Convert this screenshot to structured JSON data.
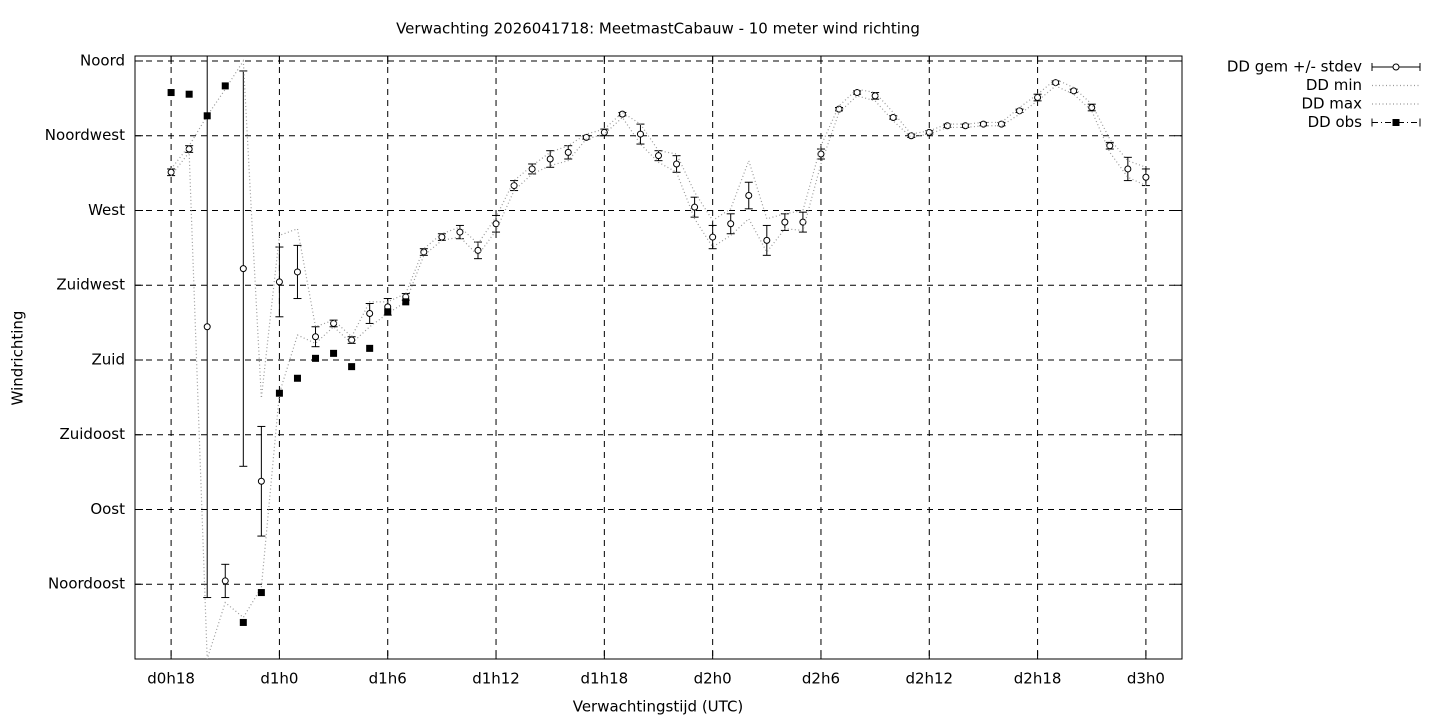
{
  "chart_data": {
    "type": "line",
    "title": "Verwachting 2026041718: MeetmastCabauw - 10 meter wind richting",
    "xlabel": "Verwachtingstijd (UTC)",
    "ylabel": "Windrichting",
    "x": [
      18,
      19,
      20,
      21,
      22,
      23,
      24,
      25,
      26,
      27,
      28,
      29,
      30,
      31,
      32,
      33,
      34,
      35,
      36,
      37,
      38,
      39,
      40,
      41,
      42,
      43,
      44,
      45,
      46,
      47,
      48,
      49,
      50,
      51,
      52,
      53,
      54,
      55,
      56,
      57,
      58,
      59,
      60,
      61,
      62,
      63,
      64,
      65,
      66,
      67,
      68,
      69,
      70,
      71,
      72
    ],
    "xlim": [
      16,
      74
    ],
    "ylim": [
      0,
      363
    ],
    "xticks": [
      {
        "value": 18,
        "label": "d0h18"
      },
      {
        "value": 24,
        "label": "d1h0"
      },
      {
        "value": 30,
        "label": "d1h6"
      },
      {
        "value": 36,
        "label": "d1h12"
      },
      {
        "value": 42,
        "label": "d1h18"
      },
      {
        "value": 48,
        "label": "d2h0"
      },
      {
        "value": 54,
        "label": "d2h6"
      },
      {
        "value": 60,
        "label": "d2h12"
      },
      {
        "value": 66,
        "label": "d2h18"
      },
      {
        "value": 72,
        "label": "d3h0"
      }
    ],
    "yticks": [
      {
        "value": 45,
        "label": "Noordoost"
      },
      {
        "value": 90,
        "label": "Oost"
      },
      {
        "value": 135,
        "label": "Zuidoost"
      },
      {
        "value": 180,
        "label": "Zuid"
      },
      {
        "value": 225,
        "label": "Zuidwest"
      },
      {
        "value": 270,
        "label": "West"
      },
      {
        "value": 315,
        "label": "Noordwest"
      },
      {
        "value": 360,
        "label": "Noord"
      }
    ],
    "grid": true,
    "legend": "right",
    "series": [
      {
        "name": "DD gem +/- stdev",
        "color": "#000000",
        "style": "errorbars",
        "values": [
          293,
          307,
          200,
          47,
          235,
          107,
          227,
          233,
          194,
          202,
          192,
          208,
          212,
          218,
          245,
          254,
          257,
          246,
          262,
          285,
          295,
          301,
          305,
          314,
          317,
          328,
          316,
          303,
          298,
          272,
          254,
          262,
          279,
          252,
          263,
          263,
          304,
          331,
          341,
          339,
          326,
          315,
          317,
          321,
          321,
          322,
          322,
          330,
          338,
          347,
          342,
          332,
          309,
          295,
          290
        ],
        "errors": [
          2,
          2,
          163,
          10,
          119,
          33,
          21,
          16,
          6,
          2,
          2,
          6,
          5,
          2,
          2,
          2,
          4,
          5,
          5,
          3,
          3,
          5,
          4,
          1,
          2,
          1,
          6,
          3,
          5,
          6,
          7,
          6,
          8,
          9,
          5,
          6,
          3,
          1,
          1,
          2,
          1,
          1,
          1,
          1,
          1,
          1,
          1,
          1,
          2,
          1,
          1,
          2,
          2,
          7,
          5
        ]
      },
      {
        "name": "DD min",
        "color": "#999999",
        "style": "dotted",
        "values": [
          291,
          305,
          0,
          34,
          25,
          43,
          160,
          195,
          190,
          200,
          190,
          200,
          208,
          215,
          243,
          252,
          254,
          243,
          258,
          282,
          292,
          297,
          300,
          313,
          316,
          326,
          310,
          299,
          293,
          265,
          248,
          255,
          265,
          245,
          259,
          258,
          298,
          329,
          339,
          336,
          324,
          314,
          316,
          320,
          320,
          321,
          321,
          328,
          336,
          345,
          340,
          330,
          305,
          290,
          285
        ]
      },
      {
        "name": "DD max",
        "color": "#999999",
        "style": "dotted",
        "values": [
          295,
          309,
          327,
          343,
          360,
          157,
          255,
          259,
          200,
          204,
          194,
          215,
          215,
          220,
          247,
          256,
          260,
          250,
          266,
          288,
          297,
          305,
          309,
          316,
          319,
          329,
          322,
          306,
          304,
          281,
          264,
          271,
          300,
          265,
          268,
          270,
          309,
          333,
          343,
          341,
          329,
          316,
          318,
          322,
          322,
          323,
          323,
          332,
          340,
          349,
          344,
          334,
          313,
          300,
          296
        ]
      },
      {
        "name": "DD obs",
        "color": "#000000",
        "style": "points",
        "x": [
          18,
          19,
          20,
          21,
          22,
          23,
          24,
          25,
          26,
          27,
          28,
          29,
          30,
          31
        ],
        "values": [
          341,
          340,
          327,
          345,
          22,
          40,
          160,
          169,
          181,
          184,
          176,
          187,
          209,
          215
        ]
      }
    ]
  }
}
